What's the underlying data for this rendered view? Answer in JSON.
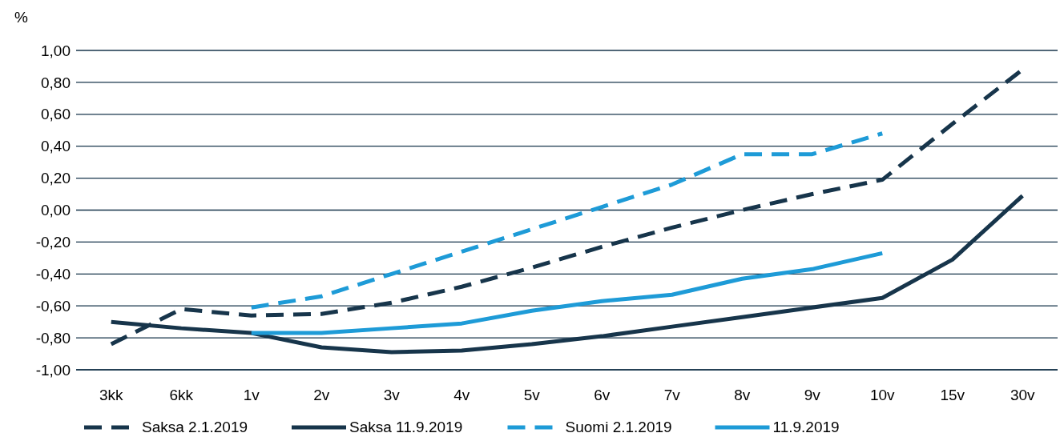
{
  "chart_data": {
    "type": "line",
    "ylabel": "%",
    "categories": [
      "3kk",
      "6kk",
      "1v",
      "2v",
      "3v",
      "4v",
      "5v",
      "6v",
      "7v",
      "8v",
      "9v",
      "10v",
      "15v",
      "30v"
    ],
    "series": [
      {
        "name": "Saksa 2.1.2019",
        "color": "#17354b",
        "line_style": "dashed",
        "values": [
          -0.84,
          -0.62,
          -0.66,
          -0.65,
          -0.58,
          -0.48,
          -0.36,
          -0.23,
          -0.11,
          0.0,
          0.1,
          0.19,
          0.54,
          0.88
        ]
      },
      {
        "name": "Saksa 11.9.2019",
        "color": "#17354b",
        "line_style": "solid",
        "values": [
          -0.7,
          -0.74,
          -0.77,
          -0.86,
          -0.89,
          -0.88,
          -0.84,
          -0.79,
          -0.73,
          -0.67,
          -0.61,
          -0.55,
          -0.31,
          0.09
        ]
      },
      {
        "name": "Suomi 2.1.2019",
        "color": "#1e9bd7",
        "line_style": "dashed",
        "values": [
          null,
          null,
          -0.61,
          -0.54,
          -0.4,
          -0.26,
          -0.12,
          0.02,
          0.16,
          0.35,
          0.35,
          0.48,
          null,
          null
        ]
      },
      {
        "name": "11.9.2019",
        "color": "#1e9bd7",
        "line_style": "solid",
        "values": [
          null,
          null,
          -0.77,
          -0.77,
          -0.74,
          -0.71,
          -0.63,
          -0.57,
          -0.53,
          -0.43,
          -0.37,
          -0.27,
          null,
          null
        ]
      }
    ],
    "ylim": [
      -1,
      1
    ],
    "yticks": [
      {
        "value": -1,
        "label": "-1,00"
      },
      {
        "value": -0.8,
        "label": "-0,80"
      },
      {
        "value": -0.6,
        "label": "-0,60"
      },
      {
        "value": -0.4,
        "label": "-0,40"
      },
      {
        "value": -0.2,
        "label": "-0,20"
      },
      {
        "value": 0,
        "label": "0,00"
      },
      {
        "value": 0.2,
        "label": "0,20"
      },
      {
        "value": 0.4,
        "label": "0,40"
      },
      {
        "value": 0.6,
        "label": "0,60"
      },
      {
        "value": 0.8,
        "label": "0,80"
      },
      {
        "value": 1,
        "label": "1,00"
      }
    ],
    "grid": "y",
    "legend": "bottom",
    "marker": "none"
  }
}
